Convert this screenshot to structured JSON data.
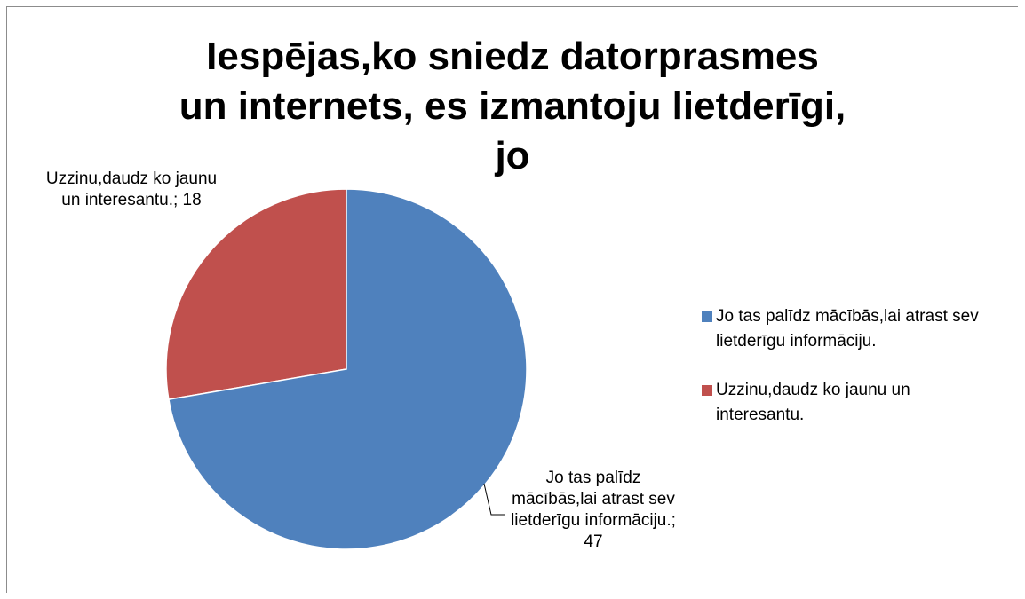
{
  "chart_data": {
    "type": "pie",
    "title": "Iespējas,ko sniedz datorprasmes un internets, es izmantoju lietderīgi, jo",
    "categories": [
      "Jo tas palīdz mācībās,lai atrast sev lietderīgu informāciju.",
      "Uzzinu,daudz ko jaunu un interesantu."
    ],
    "values": [
      47,
      18
    ],
    "value_labels": [
      "Jo tas palīdz mācībās,lai atrast sev lietderīgu informāciju.; 47",
      "Uzzinu,daudz ko jaunu un interesantu.; 18"
    ],
    "colors": [
      "#4f81bd",
      "#c0504d"
    ],
    "legend": "right"
  }
}
